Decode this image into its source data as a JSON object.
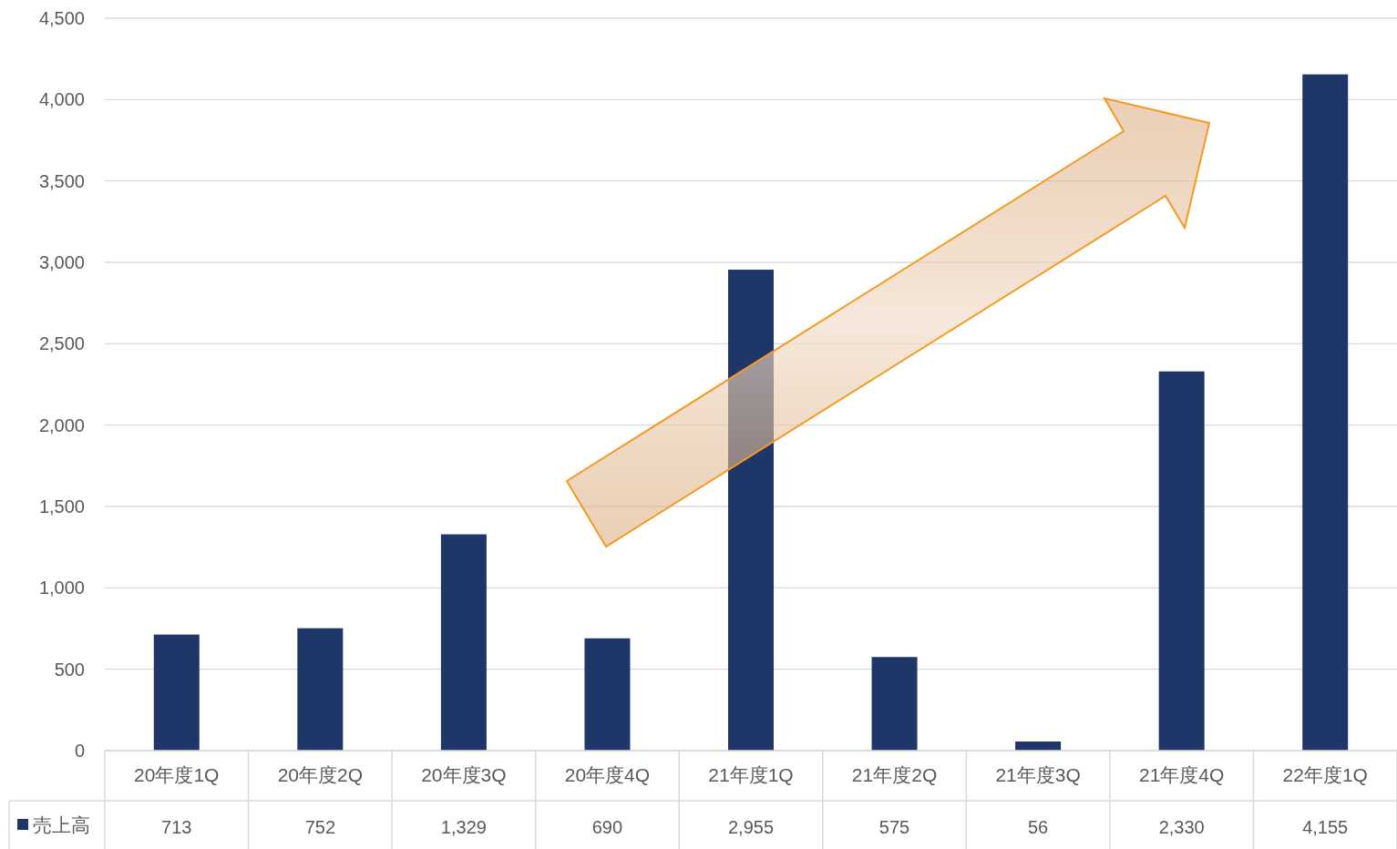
{
  "chart_data": {
    "type": "bar",
    "categories": [
      "20年度1Q",
      "20年度2Q",
      "20年度3Q",
      "20年度4Q",
      "21年度1Q",
      "21年度2Q",
      "21年度3Q",
      "21年度4Q",
      "22年度1Q"
    ],
    "series": [
      {
        "name": "売上高",
        "color": "#1f3668",
        "values": [
          713,
          752,
          1329,
          690,
          2955,
          575,
          56,
          2330,
          4155
        ],
        "value_labels": [
          "713",
          "752",
          "1,329",
          "690",
          "2,955",
          "575",
          "56",
          "2,330",
          "4,155"
        ]
      }
    ],
    "ylim": [
      0,
      4500
    ],
    "yticks": [
      {
        "value": 0,
        "label": "0"
      },
      {
        "value": 500,
        "label": "500"
      },
      {
        "value": 1000,
        "label": "1,000"
      },
      {
        "value": 1500,
        "label": "1,500"
      },
      {
        "value": 2000,
        "label": "2,000"
      },
      {
        "value": 2500,
        "label": "2,500"
      },
      {
        "value": 3000,
        "label": "3,000"
      },
      {
        "value": 3500,
        "label": "3,500"
      },
      {
        "value": 4000,
        "label": "4,000"
      },
      {
        "value": 4500,
        "label": "4,500"
      }
    ],
    "grid": "y",
    "legend": "bottom left"
  }
}
